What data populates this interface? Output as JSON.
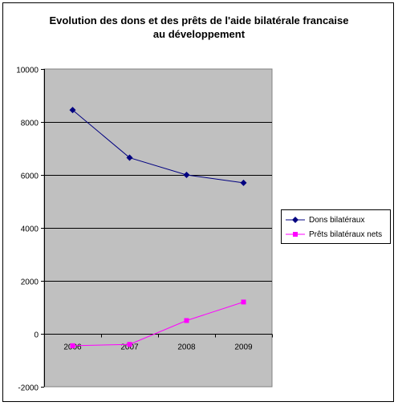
{
  "title_lines": [
    "Evolution des dons et des prêts  de l'aide bilatérale francaise",
    "au développement"
  ],
  "colors": {
    "plot_background": "#c0c0c0",
    "dons": "#000080",
    "prets": "#ff00ff",
    "gridline": "#000000"
  },
  "legend": {
    "placement": "right",
    "items": [
      {
        "label": "Dons bilatéraux",
        "color": "#000080",
        "marker": "diamond"
      },
      {
        "label": "Prêts bilatéraux nets",
        "color": "#ff00ff",
        "marker": "square"
      }
    ]
  },
  "chart_data": {
    "type": "line",
    "title": "Evolution des dons et des prêts  de l'aide bilatérale francaise au développement",
    "categories": [
      "2006",
      "2007",
      "2008",
      "2009"
    ],
    "series": [
      {
        "name": "Dons bilatéraux",
        "values": [
          8450,
          6650,
          6000,
          5700
        ]
      },
      {
        "name": "Prêts bilatéraux nets",
        "values": [
          -450,
          -400,
          500,
          1200
        ]
      }
    ],
    "ylim": [
      -2000,
      10000
    ],
    "y_ticks": [
      "-2000",
      "0",
      "2000",
      "4000",
      "6000",
      "8000",
      "10000"
    ],
    "grid": true,
    "xlabel": "",
    "ylabel": ""
  }
}
